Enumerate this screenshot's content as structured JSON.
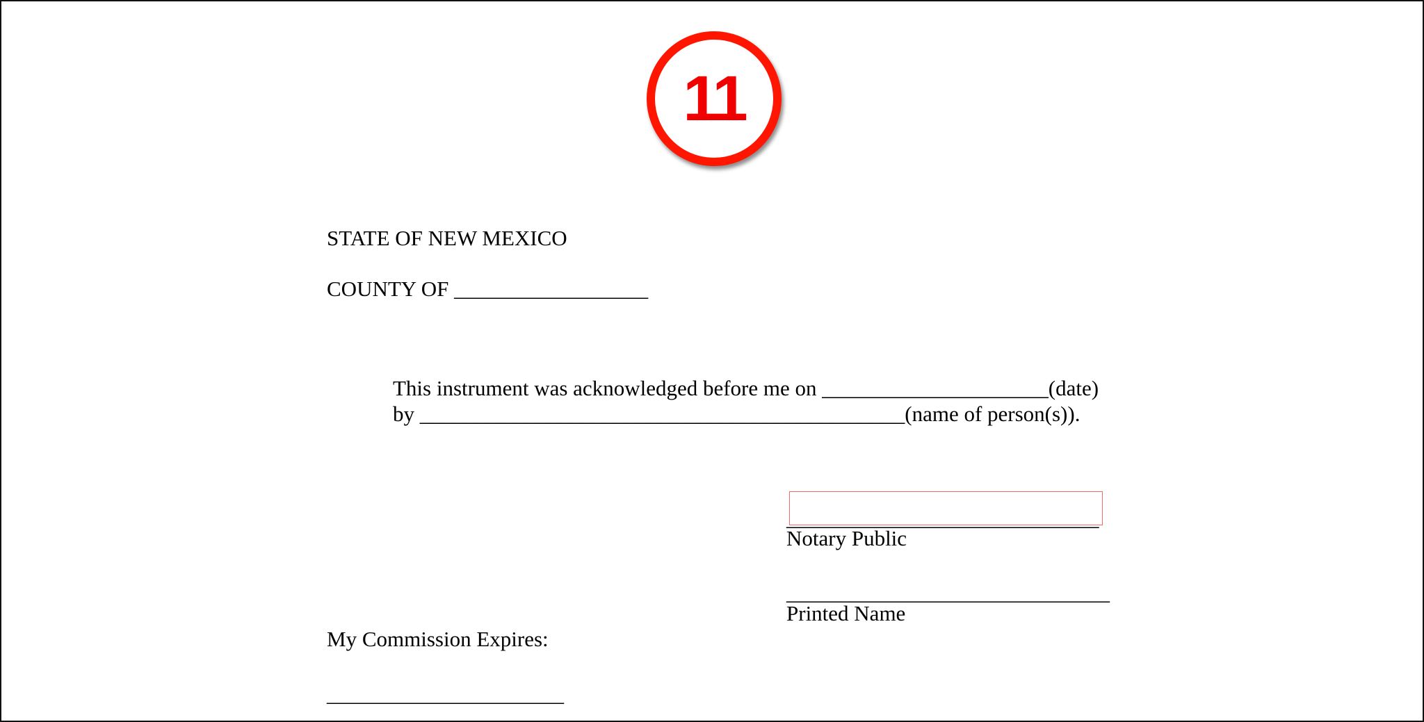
{
  "badge": {
    "number": "11",
    "color": "#ff1500"
  },
  "document": {
    "state_line": "STATE OF NEW MEXICO",
    "county_line": "COUNTY OF __________________",
    "ack_line1": "This instrument was acknowledged before me on _____________________(date)",
    "ack_line2": "by _____________________________________________(name of person(s)).",
    "signature_line": "_____________________________",
    "notary_label": "Notary Public",
    "printed_name_line": "______________________________",
    "printed_name_label": "Printed Name",
    "commission_label": "My Commission Expires:",
    "commission_line": "______________________"
  },
  "signature_field": {
    "highlight_color": "#f26b6b"
  }
}
